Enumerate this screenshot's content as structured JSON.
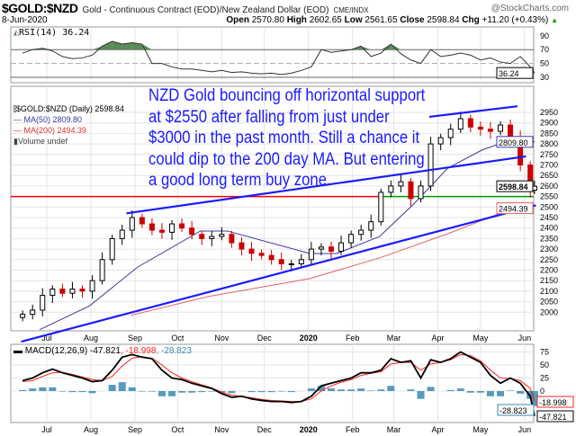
{
  "header": {
    "symbol": "$GOLD:$NZD",
    "description": "Gold - Continuous Contract (EOD)/New Zealand Dollar (EOD)",
    "source": "CME/INDX",
    "watermark": "@StockCharts.com",
    "date": "8-Jun-2020",
    "open_label": "Open",
    "open": "2570.80",
    "high_label": "High",
    "high": "2602.65",
    "low_label": "Low",
    "low": "2561.65",
    "close_label": "Close",
    "close": "2598.84",
    "chg_label": "Chg",
    "chg": "+11.20 (+0.43%)",
    "chg_icon": "up-triangle"
  },
  "annotation": [
    "NZD Gold bouncing off horizontal support",
    "at $2550 after falling from just under",
    "$3000 in the past month. Still a chance it",
    "could dip to the 200 day MA. But entering",
    "a good long term buy zone."
  ],
  "legend": {
    "price": "$GOLD:$NZD (Daily) 2598.84",
    "ma50": "MA(50) 2809.80",
    "ma200": "MA(200) 2494.39",
    "volume": "Volume undef"
  },
  "colors": {
    "up": "#000000",
    "down": "#cc0000",
    "ma50": "#3a3aa0",
    "ma200": "#e06060",
    "trendline": "#1a1aff",
    "support_red": "#ff0000",
    "support_green": "#009900",
    "rsi_fill": "#5a8a5a",
    "macd": "#000000",
    "signal": "#ff2020",
    "histogram": "#3a8ab0"
  },
  "chart_data": [
    {
      "type": "candlestick",
      "title": "$GOLD:$NZD (Daily)",
      "ylim": [
        1980,
        2990
      ],
      "grid": true,
      "legend": "top-left",
      "y_ticks": [
        2000,
        2050,
        2100,
        2150,
        2200,
        2250,
        2300,
        2350,
        2400,
        2450,
        2500,
        2550,
        2600,
        2650,
        2700,
        2750,
        2800,
        2850,
        2900,
        2950
      ],
      "x_ticks": [
        {
          "label": "Jul",
          "date": "2019-07-01"
        },
        {
          "label": "Aug",
          "date": "2019-08-01"
        },
        {
          "label": "Sep",
          "date": "2019-09-01"
        },
        {
          "label": "Oct",
          "date": "2019-10-01"
        },
        {
          "label": "Nov",
          "date": "2019-11-01"
        },
        {
          "label": "Dec",
          "date": "2019-12-01"
        },
        {
          "label": "2020",
          "date": "2020-01-01"
        },
        {
          "label": "Feb",
          "date": "2020-02-01"
        },
        {
          "label": "Mar",
          "date": "2020-03-01"
        },
        {
          "label": "Apr",
          "date": "2020-04-01"
        },
        {
          "label": "May",
          "date": "2020-05-01"
        },
        {
          "label": "Jun",
          "date": "2020-06-01"
        }
      ],
      "dates": [
        "2019-06-14",
        "2019-06-21",
        "2019-06-28",
        "2019-07-05",
        "2019-07-12",
        "2019-07-19",
        "2019-07-26",
        "2019-08-02",
        "2019-08-09",
        "2019-08-16",
        "2019-08-23",
        "2019-08-30",
        "2019-09-06",
        "2019-09-13",
        "2019-09-20",
        "2019-09-27",
        "2019-10-04",
        "2019-10-11",
        "2019-10-18",
        "2019-10-25",
        "2019-11-01",
        "2019-11-08",
        "2019-11-15",
        "2019-11-22",
        "2019-11-29",
        "2019-12-06",
        "2019-12-13",
        "2019-12-20",
        "2019-12-27",
        "2020-01-03",
        "2020-01-10",
        "2020-01-17",
        "2020-01-24",
        "2020-01-31",
        "2020-02-07",
        "2020-02-14",
        "2020-02-21",
        "2020-02-28",
        "2020-03-06",
        "2020-03-13",
        "2020-03-20",
        "2020-03-27",
        "2020-04-03",
        "2020-04-10",
        "2020-04-17",
        "2020-04-24",
        "2020-05-01",
        "2020-05-08",
        "2020-05-15",
        "2020-05-22",
        "2020-05-29",
        "2020-06-05",
        "2020-06-08"
      ],
      "close": [
        1990,
        2010,
        2080,
        2110,
        2090,
        2110,
        2100,
        2150,
        2250,
        2350,
        2390,
        2450,
        2420,
        2390,
        2380,
        2420,
        2400,
        2370,
        2350,
        2360,
        2370,
        2330,
        2300,
        2280,
        2270,
        2250,
        2230,
        2230,
        2250,
        2300,
        2310,
        2290,
        2330,
        2370,
        2390,
        2430,
        2570,
        2600,
        2620,
        2540,
        2600,
        2800,
        2830,
        2870,
        2920,
        2880,
        2870,
        2860,
        2890,
        2830,
        2700,
        2580,
        2598.84
      ],
      "last": {
        "close": "2598.84",
        "ma50": "2809.80",
        "ma200": "2494.39"
      },
      "ma50": [
        [
          "2019-06-26",
          1917
        ],
        [
          "2019-07-31",
          2030
        ],
        [
          "2019-09-03",
          2215
        ],
        [
          "2019-10-17",
          2386
        ],
        [
          "2019-11-05",
          2386
        ],
        [
          "2020-01-02",
          2279
        ],
        [
          "2020-01-21",
          2279
        ],
        [
          "2020-02-20",
          2360
        ],
        [
          "2020-03-15",
          2514
        ],
        [
          "2020-04-08",
          2685
        ],
        [
          "2020-05-02",
          2771
        ],
        [
          "2020-05-27",
          2830
        ],
        [
          "2020-06-08",
          2809.8
        ]
      ],
      "ma200": [
        [
          "2019-08-29",
          1985
        ],
        [
          "2019-10-22",
          2074
        ],
        [
          "2020-01-02",
          2160
        ],
        [
          "2020-02-20",
          2258
        ],
        [
          "2020-04-08",
          2373
        ],
        [
          "2020-05-15",
          2471
        ],
        [
          "2020-06-08",
          2494.39
        ]
      ],
      "trendlines": [
        [
          [
            "2019-08-26",
            2470
          ],
          [
            "2020-06-02",
            2741
          ]
        ],
        [
          [
            "2020-03-26",
            2929
          ],
          [
            "2020-05-27",
            2979
          ]
        ],
        [
          [
            "2019-06-13",
            1860
          ],
          [
            "2020-06-09",
            2508
          ]
        ]
      ],
      "support": {
        "value": 2550,
        "red_until": "2020-02-21"
      }
    },
    {
      "type": "line",
      "title": "RSI(14) 36.24",
      "ylim": [
        25,
        100
      ],
      "y_ticks": [
        90,
        70,
        50,
        30
      ],
      "last": "36.24",
      "overbought": 70,
      "values": [
        65,
        70,
        72,
        68,
        60,
        57,
        58,
        62,
        75,
        82,
        78,
        80,
        78,
        50,
        50,
        45,
        42,
        42,
        40,
        38,
        40,
        37,
        38,
        36,
        35,
        36,
        34,
        36,
        40,
        45,
        70,
        66,
        68,
        70,
        75,
        60,
        65,
        78,
        64,
        55,
        50,
        70,
        60,
        62,
        65,
        62,
        55,
        58,
        52,
        50,
        60,
        45,
        36.24
      ]
    },
    {
      "type": "line",
      "title": "MACD(12,26,9)",
      "title_values": [
        " -47.821",
        ", -18.998",
        ", -28.823"
      ],
      "ylim": [
        -55,
        90
      ],
      "y_ticks": [
        75,
        50,
        25,
        0
      ],
      "macd": [
        20,
        25,
        35,
        42,
        35,
        30,
        25,
        18,
        20,
        40,
        65,
        70,
        65,
        62,
        40,
        25,
        22,
        15,
        10,
        5,
        -5,
        -12,
        -10,
        -15,
        -18,
        -20,
        -20,
        -22,
        -20,
        -10,
        10,
        15,
        20,
        25,
        35,
        35,
        40,
        62,
        55,
        58,
        25,
        60,
        55,
        62,
        75,
        65,
        55,
        30,
        15,
        25,
        15,
        -10,
        -47.821
      ],
      "signal": [
        18,
        20,
        28,
        35,
        36,
        32,
        27,
        22,
        20,
        28,
        48,
        63,
        66,
        63,
        50,
        35,
        25,
        18,
        12,
        6,
        -2,
        -8,
        -10,
        -13,
        -16,
        -18,
        -19,
        -20,
        -20,
        -15,
        0,
        10,
        17,
        22,
        30,
        34,
        37,
        52,
        55,
        55,
        40,
        52,
        55,
        60,
        70,
        68,
        58,
        40,
        25,
        24,
        20,
        5,
        -18.998
      ],
      "last": {
        "macd": "-47.821",
        "signal": "-18.998",
        "histogram": "-28.823"
      }
    }
  ]
}
